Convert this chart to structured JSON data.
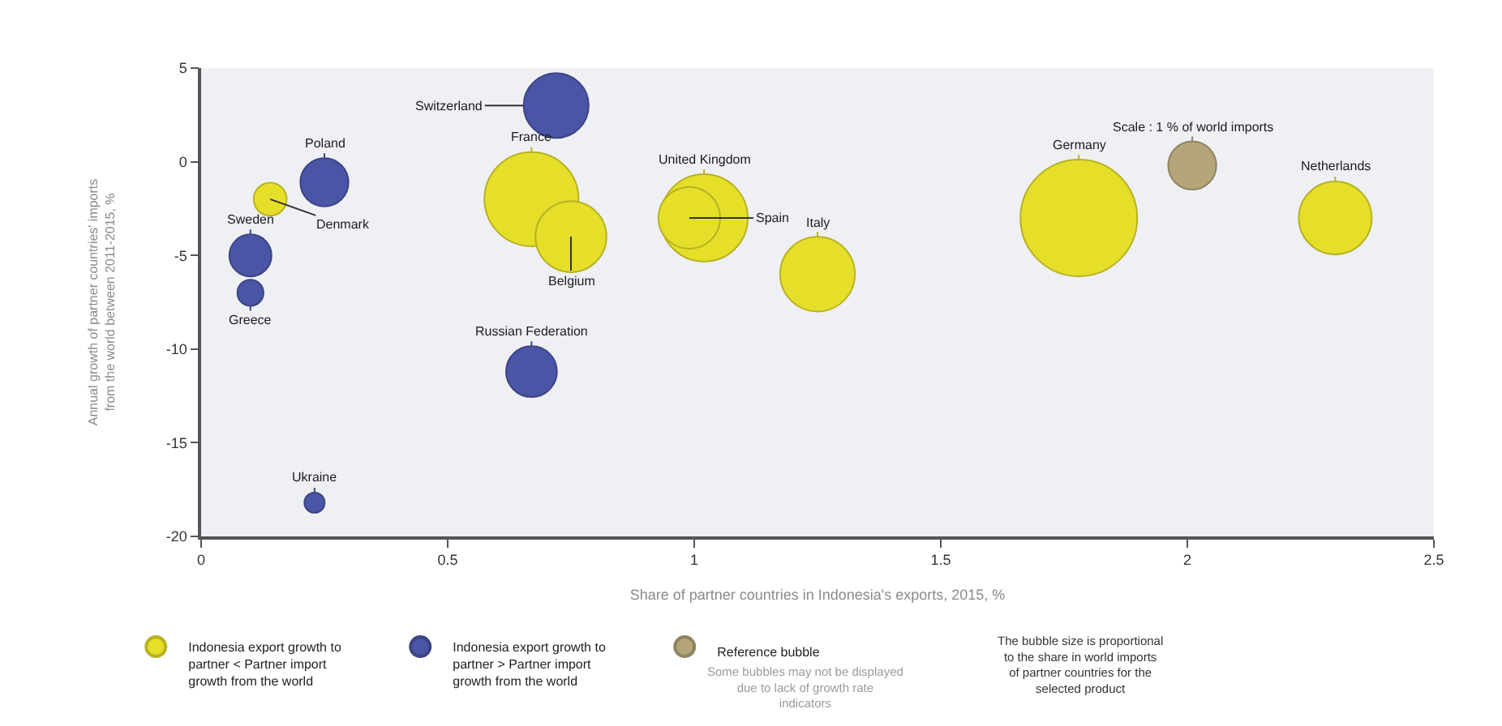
{
  "chart_data": {
    "type": "bubble",
    "xlabel": "Share of partner countries in Indonesia's exports, 2015, %",
    "ylabel": "Annual growth of partner countries' imports from the world between 2011-2015, %",
    "xlim": [
      0,
      2.5
    ],
    "xticks": [
      0,
      0.5,
      1,
      1.5,
      2,
      2.5
    ],
    "ylim": [
      -20,
      5
    ],
    "yticks": [
      -20,
      -15,
      -10,
      -5,
      0,
      5
    ],
    "grid": false,
    "legend": "bottom",
    "marker": "circle",
    "series": [
      {
        "name": "Indonesia export growth to partner < Partner import growth from the world",
        "color": "#e6df2a",
        "x": [
          0.14,
          0.67,
          0.75,
          1.02,
          0.99,
          1.25,
          1.78,
          2.3
        ],
        "values": [
          -2,
          -2,
          -4,
          -3,
          -3,
          -6,
          -3,
          -3
        ],
        "sizes": [
          0.08,
          0.65,
          0.37,
          0.56,
          0.28,
          0.41,
          1,
          0.39
        ]
      },
      {
        "name": "Indonesia export growth to partner > Partner import growth from the world",
        "color": "#4b55a5",
        "x": [
          0.72,
          0.25,
          0.1,
          0.1,
          0.23,
          0.67
        ],
        "values": [
          3,
          -1.1,
          -5,
          -7,
          -18.2,
          -11.2
        ],
        "sizes": [
          0.31,
          0.17,
          0.13,
          0.05,
          0.03,
          0.19
        ]
      },
      {
        "name": "Reference bubble",
        "color": "#b5a57a",
        "x": [
          2.01
        ],
        "values": [
          -0.2
        ],
        "sizes": [
          0.17
        ]
      }
    ],
    "annotations": [
      {
        "text": "Switzerland",
        "x": 0.72,
        "y": 3
      },
      {
        "text": "Poland",
        "x": 0.25,
        "y": -1.1
      },
      {
        "text": "Denmark",
        "x": 0.14,
        "y": -2
      },
      {
        "text": "Sweden",
        "x": 0.1,
        "y": -5
      },
      {
        "text": "Greece",
        "x": 0.1,
        "y": -7
      },
      {
        "text": "Ukraine",
        "x": 0.23,
        "y": -18.2
      },
      {
        "text": "France",
        "x": 0.67,
        "y": -2
      },
      {
        "text": "Belgium",
        "x": 0.75,
        "y": -4
      },
      {
        "text": "Russian Federation",
        "x": 0.67,
        "y": -11.2
      },
      {
        "text": "United Kingdom",
        "x": 1.02,
        "y": -3
      },
      {
        "text": "Spain",
        "x": 0.99,
        "y": -3
      },
      {
        "text": "Italy",
        "x": 1.25,
        "y": -6
      },
      {
        "text": "Germany",
        "x": 1.78,
        "y": -3
      },
      {
        "text": "Scale : 1 % of world imports",
        "x": 2.01,
        "y": -0.2
      },
      {
        "text": "Netherlands",
        "x": 2.3,
        "y": -3
      },
      "Some bubbles may not be displayed due to lack of growth rate indicators",
      "The bubble size is proportional to the share in world imports of partner countries for the selected product"
    ]
  }
}
